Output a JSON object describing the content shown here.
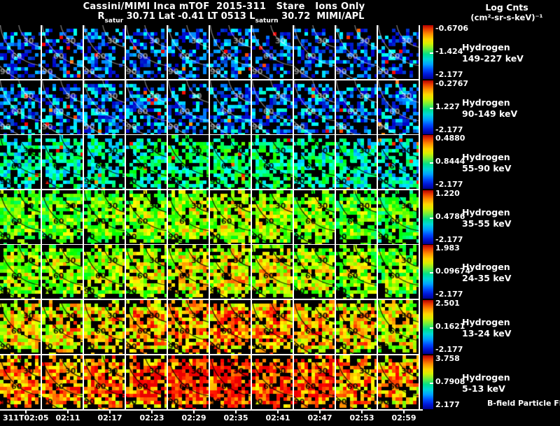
{
  "header": {
    "title": "Cassini/MIMI Inca mTOF  2015-311   Stare   Ions Only",
    "position_line": {
      "r_label": "R",
      "r_sub": "satur",
      "seg1": " 30.71 Lat -0.41 LT 0513 L",
      "l_sub": "saturn",
      "seg2": " 30.72  MIMI/APL"
    },
    "colorbar_legend": {
      "title": "Log Cnts",
      "units": "(cm²-sr-s-keV)⁻¹"
    }
  },
  "rows": [
    {
      "species": "Hydrogen",
      "energy": "149-227 keV",
      "cbar": {
        "top": "-0.6706",
        "mid": "-1.424",
        "bot": "-2.177"
      }
    },
    {
      "species": "Hydrogen",
      "energy": "90-149 keV",
      "cbar": {
        "top": "-0.2767",
        "mid": "1.227",
        "bot": "-2.177"
      }
    },
    {
      "species": "Hydrogen",
      "energy": "55-90 keV",
      "cbar": {
        "top": "0.4880",
        "mid": "0.8444",
        "bot": "-2.177"
      }
    },
    {
      "species": "Hydrogen",
      "energy": "35-55 keV",
      "cbar": {
        "top": "1.220",
        "mid": "0.4786",
        "bot": "-2.177"
      }
    },
    {
      "species": "Hydrogen",
      "energy": "24-35 keV",
      "cbar": {
        "top": "1.983",
        "mid": "0.09674",
        "bot": "-2.177"
      }
    },
    {
      "species": "Hydrogen",
      "energy": "13-24 keV",
      "cbar": {
        "top": "2.501",
        "mid": "0.1621",
        "bot": "-2.177"
      }
    },
    {
      "species": "Hydrogen",
      "energy": "5-13 keV",
      "cbar": {
        "top": "3.758",
        "mid": "0.7908",
        "bot": "2.177"
      }
    }
  ],
  "bottom_annotation": "B-field Particle Flow",
  "time_axis": [
    "311T02:05",
    "02:11",
    "02:17",
    "02:23",
    "02:29",
    "02:35",
    "02:41",
    "02:47",
    "02:53",
    "02:59"
  ],
  "contour_labels": [
    "30",
    "60",
    "90"
  ],
  "chart_data": {
    "type": "heatmap",
    "title": "Cassini/MIMI Inca mTOF 2015-311 Stare Ions Only",
    "subtitle": "R_satur 30.71 Lat -0.41 LT 0513 L_saturn 30.72 MIMI/APL",
    "x": [
      "311T02:05",
      "02:11",
      "02:17",
      "02:23",
      "02:29",
      "02:35",
      "02:41",
      "02:47",
      "02:53",
      "02:59"
    ],
    "colorbar_units": "Log Cnts (cm²-sr-s-keV)⁻¹",
    "palette": "rainbow blue-to-red, black = no counts",
    "contour_overlay_labels_deg": [
      30,
      60,
      90
    ],
    "series": [
      {
        "name": "Hydrogen 149-227 keV",
        "scale_labels": [
          "-0.6706",
          "-1.424",
          "-2.177"
        ],
        "qualitative": "sparse dark blue pixels on black"
      },
      {
        "name": "Hydrogen 90-149 keV",
        "scale_labels": [
          "-0.2767",
          "1.227",
          "-2.177"
        ],
        "qualitative": "sparse blue/cyan pixels on black"
      },
      {
        "name": "Hydrogen 55-90 keV",
        "scale_labels": [
          "0.4880",
          "0.8444",
          "-2.177"
        ],
        "qualitative": "cyan-green speckle, denser mid-columns"
      },
      {
        "name": "Hydrogen 35-55 keV",
        "scale_labels": [
          "1.220",
          "0.4786",
          "-2.177"
        ],
        "qualitative": "green-yellow filled panels"
      },
      {
        "name": "Hydrogen 24-35 keV",
        "scale_labels": [
          "1.983",
          "0.09674",
          "-2.177"
        ],
        "qualitative": "yellow-green filled panels"
      },
      {
        "name": "Hydrogen 13-24 keV",
        "scale_labels": [
          "2.501",
          "0.1621",
          "-2.177"
        ],
        "qualitative": "yellow-orange filled panels"
      },
      {
        "name": "Hydrogen 5-13 keV",
        "scale_labels": [
          "3.758",
          "0.7908",
          "2.177"
        ],
        "qualitative": "orange-red filled panels"
      }
    ]
  },
  "heatmap_style": {
    "background": "#000000",
    "separator": "#ffffff",
    "row_base": [
      0.13,
      0.17,
      0.33,
      0.52,
      0.58,
      0.7,
      0.8
    ],
    "row_mask": [
      0.5,
      0.42,
      0.3,
      0.12,
      0.14,
      0.16,
      0.18
    ],
    "col_boost": [
      0.0,
      0.01,
      0.02,
      0.05,
      0.08,
      0.1,
      0.08,
      0.04,
      0.0,
      -0.04
    ],
    "contour_color_dark_rows": "rgba(255,255,255,0.5)",
    "contour_color_bright_rows": "rgba(0,0,0,0.85)"
  }
}
